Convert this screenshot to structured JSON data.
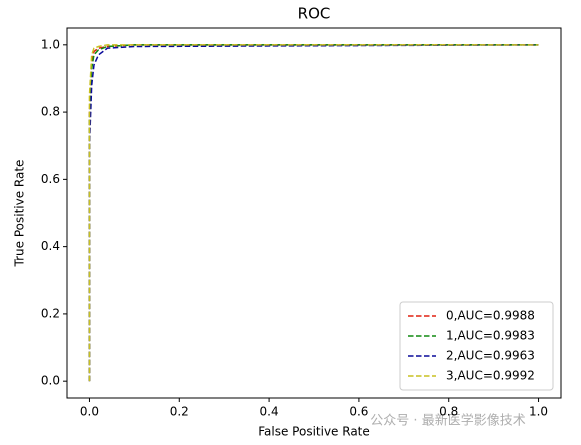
{
  "chart_data": {
    "type": "line",
    "title": "ROC",
    "x_label": "False Positive Rate",
    "y_label": "True Positive Rate",
    "x": [
      0,
      0,
      0.005,
      0.01,
      0.02,
      0.04,
      0.1,
      1.0
    ],
    "series": [
      {
        "name": "0,AUC=0.9988",
        "color": "#e02010",
        "values": [
          0,
          0.8,
          0.95,
          0.98,
          0.99,
          0.995,
          1,
          1
        ]
      },
      {
        "name": "1,AUC=0.9983",
        "color": "#108a10",
        "values": [
          0,
          0.78,
          0.93,
          0.97,
          0.985,
          0.995,
          1,
          1
        ]
      },
      {
        "name": "2,AUC=0.9963",
        "color": "#0a0a9a",
        "values": [
          0,
          0.7,
          0.88,
          0.94,
          0.97,
          0.99,
          0.995,
          1
        ]
      },
      {
        "name": "3,AUC=0.9992",
        "color": "#c8c020",
        "values": [
          0,
          0.85,
          0.97,
          0.99,
          0.995,
          1,
          1,
          1
        ]
      }
    ],
    "xlim": [
      -0.05,
      1.05
    ],
    "ylim": [
      -0.05,
      1.05
    ],
    "xticks": [
      {
        "value": 0,
        "label": "0.0"
      },
      {
        "value": 0.2,
        "label": "0.2"
      },
      {
        "value": 0.4,
        "label": "0.4"
      },
      {
        "value": 0.6,
        "label": "0.6"
      },
      {
        "value": 0.8,
        "label": "0.8"
      },
      {
        "value": 1,
        "label": "1.0"
      }
    ],
    "yticks": [
      {
        "value": 0,
        "label": "0.0"
      },
      {
        "value": 0.2,
        "label": "0.2"
      },
      {
        "value": 0.4,
        "label": "0.4"
      },
      {
        "value": 0.6,
        "label": "0.6"
      },
      {
        "value": 0.8,
        "label": "0.8"
      },
      {
        "value": 1,
        "label": "1.0"
      }
    ],
    "legend": "lower right",
    "grid": false,
    "watermark": "公众号 · 最新医学影像技术"
  }
}
